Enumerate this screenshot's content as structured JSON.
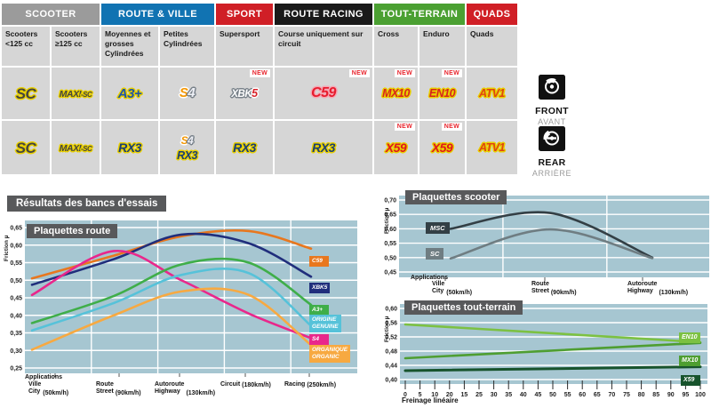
{
  "table": {
    "groups": [
      {
        "label": "SCOOTER",
        "color": "#9b9b9b"
      },
      {
        "label": "ROUTE & VILLE",
        "color": "#1173b2"
      },
      {
        "label": "SPORT",
        "color": "#d01f26"
      },
      {
        "label": "ROUTE RACING",
        "color": "#1a1a1a"
      },
      {
        "label": "TOUT-TERRAIN",
        "color": "#4ba032"
      },
      {
        "label": "QUADS",
        "color": "#d01f26"
      }
    ],
    "columns": [
      "Scooters <125 cc",
      "Scooters ≥125 cc",
      "Moyennes et grosses Cylindrées",
      "Petites Cylindrées",
      "Supersport",
      "Course uniquement sur circuit",
      "Cross",
      "Enduro",
      "Quads"
    ],
    "front": {
      "side_en": "FRONT",
      "side_fr": "AVANT",
      "cells": [
        {
          "logo": "SC"
        },
        {
          "logo": "MAXI-SC",
          "part1": "MAXI",
          "part2": "-SC"
        },
        {
          "logo": "A3+"
        },
        {
          "logo": "S4",
          "part1": "S",
          "part2": "4"
        },
        {
          "logo": "XBK5",
          "part1": "XBK",
          "part2": "5",
          "new": "NEW"
        },
        {
          "logo": "C59",
          "new": "NEW"
        },
        {
          "logo": "MX10",
          "new": "NEW"
        },
        {
          "logo": "EN10",
          "new": "NEW"
        },
        {
          "logo": "ATV1"
        }
      ]
    },
    "rear": {
      "side_en": "REAR",
      "side_fr": "ARRIÈRE",
      "cells": [
        {
          "logo": "SC"
        },
        {
          "logo": "MAXI-SC",
          "part1": "MAXI",
          "part2": "-SC"
        },
        {
          "logo": "RX3"
        },
        {
          "logo1": "S4",
          "part1": "S",
          "part2": "4",
          "logo2": "RX3"
        },
        {
          "logo": "RX3"
        },
        {
          "logo": "RX3"
        },
        {
          "logo": "X59",
          "new": "NEW"
        },
        {
          "logo": "X59",
          "new": "NEW"
        },
        {
          "logo": "ATV1"
        }
      ]
    }
  },
  "section_title": "Résultats des bancs d'essais",
  "chart_data": [
    {
      "id": "route",
      "type": "line",
      "title": "Plaquettes route",
      "ylabel": "Friction µ",
      "xlabel": "Applications",
      "bg": "#a6c6d1",
      "ylim": [
        0.25,
        0.65
      ],
      "yticks": [
        "0,65",
        "0,60",
        "0,55",
        "0,50",
        "0,45",
        "0,40",
        "0,35",
        "0,30",
        "0,25"
      ],
      "categories": [
        {
          "fr": "Ville",
          "en": "City",
          "speed": "(50km/h)"
        },
        {
          "fr": "Route",
          "en": "Street",
          "speed": "(90km/h)"
        },
        {
          "fr": "Autoroute",
          "en": "Highway",
          "speed": "(130km/h)"
        },
        {
          "fr": "Circuit",
          "en": "",
          "speed": "(180km/h)"
        },
        {
          "fr": "Racing",
          "en": "",
          "speed": "(250km/h)"
        }
      ],
      "series": [
        {
          "name": "C59",
          "label1": "C59",
          "color": "#e8771e",
          "values": [
            0.505,
            0.57,
            0.625,
            0.64,
            0.59
          ]
        },
        {
          "name": "XBK5",
          "label1": "XBK5",
          "color": "#202e7c",
          "values": [
            0.487,
            0.56,
            0.63,
            0.605,
            0.51
          ]
        },
        {
          "name": "S4",
          "label1": "S4",
          "color": "#e9278b",
          "values": [
            0.458,
            0.583,
            0.5,
            0.405,
            0.335
          ]
        },
        {
          "name": "A3+",
          "label1": "A3+",
          "color": "#3fae49",
          "values": [
            0.378,
            0.455,
            0.545,
            0.55,
            0.43
          ]
        },
        {
          "name": "ORIGINE GENUINE",
          "label1": "ORIGINE",
          "label2": "GENUINE",
          "color": "#56c2d9",
          "values": [
            0.357,
            0.435,
            0.515,
            0.52,
            0.37
          ]
        },
        {
          "name": "ORGANIQUE ORGANIC",
          "label1": "ORGANIQUE",
          "label2": "ORGANIC",
          "color": "#f7a941",
          "values": [
            0.302,
            0.4,
            0.468,
            0.458,
            0.315
          ]
        }
      ]
    },
    {
      "id": "scooter",
      "type": "line",
      "title": "Plaquettes scooter",
      "ylabel": "Friction µ",
      "xlabel": "Applications",
      "bg": "#a6c6d1",
      "ylim": [
        0.45,
        0.7
      ],
      "yticks": [
        "0,70",
        "0,65",
        "0,60",
        "0,55",
        "0,50",
        "0,45"
      ],
      "categories": [
        {
          "fr": "Ville",
          "en": "City",
          "speed": "(50km/h)"
        },
        {
          "fr": "Route",
          "en": "Street",
          "speed": "(90km/h)"
        },
        {
          "fr": "Autoroute",
          "en": "Highway",
          "speed": "(130km/h)"
        }
      ],
      "series": [
        {
          "name": "MSC",
          "label1": "MSC",
          "color": "#333f45",
          "values": [
            0.6,
            0.655,
            0.5
          ]
        },
        {
          "name": "SC",
          "label1": "SC",
          "color": "#6f7d82",
          "values": [
            0.497,
            0.598,
            0.498
          ]
        }
      ]
    },
    {
      "id": "offroad",
      "type": "line",
      "title": "Plaquettes tout-terrain",
      "ylabel": "Friction µ",
      "xlabel": "Freinage linéaire",
      "bg": "#a6c6d1",
      "ylim": [
        0.4,
        0.6
      ],
      "yticks": [
        "0,60",
        "0,56",
        "0,52",
        "0,48",
        "0,44",
        "0,40"
      ],
      "xticks": [
        "0",
        "5",
        "10",
        "20",
        "15",
        "25",
        "30",
        "35",
        "40",
        "45",
        "50",
        "55",
        "60",
        "65",
        "70",
        "75",
        "80",
        "85",
        "90",
        "95",
        "100"
      ],
      "x_range": [
        0,
        100
      ],
      "series": [
        {
          "name": "EN10",
          "label1": "EN10",
          "color": "#7cc142",
          "values": [
            0.555,
            0.505
          ]
        },
        {
          "name": "MX10",
          "label1": "MX10",
          "color": "#4e9e31",
          "values": [
            0.46,
            0.503
          ]
        },
        {
          "name": "X59",
          "label1": "X59",
          "color": "#17532c",
          "w": 3,
          "values": [
            0.425,
            0.436
          ]
        }
      ]
    }
  ]
}
